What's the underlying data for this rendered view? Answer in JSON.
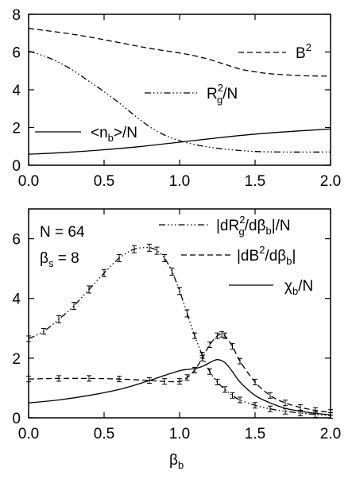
{
  "chart_data": [
    {
      "type": "line",
      "panel": "top",
      "xlim": [
        0.0,
        2.0
      ],
      "ylim": [
        0,
        8
      ],
      "xticks": [
        "0.0",
        "0.5",
        "1.0",
        "1.5",
        "2.0"
      ],
      "yticks": [
        "0",
        "2",
        "4",
        "6",
        "8"
      ],
      "grid": false,
      "series": [
        {
          "name": "B2",
          "legend_main": "B",
          "legend_sup": "2",
          "dash": "dashed",
          "x": [
            0.0,
            0.2,
            0.4,
            0.6,
            0.8,
            1.0,
            1.1,
            1.2,
            1.3,
            1.4,
            1.5,
            1.6,
            1.8,
            2.0
          ],
          "y": [
            7.25,
            7.05,
            6.8,
            6.5,
            6.2,
            5.95,
            5.8,
            5.6,
            5.35,
            5.1,
            4.95,
            4.85,
            4.75,
            4.72
          ]
        },
        {
          "name": "R2g/N",
          "legend_main": "R",
          "legend_sup": "2",
          "legend_sub": "g",
          "legend_tail": "/N",
          "dash": "dashdotdot",
          "x": [
            0.0,
            0.1,
            0.2,
            0.3,
            0.4,
            0.5,
            0.6,
            0.7,
            0.8,
            0.9,
            1.0,
            1.1,
            1.2,
            1.3,
            1.4,
            1.5,
            1.7,
            2.0
          ],
          "y": [
            6.05,
            5.8,
            5.45,
            5.0,
            4.45,
            3.9,
            3.3,
            2.65,
            2.05,
            1.6,
            1.3,
            1.1,
            0.95,
            0.85,
            0.78,
            0.73,
            0.7,
            0.7
          ]
        },
        {
          "name": "<nb>/N",
          "legend_main": "<n",
          "legend_sub": "b",
          "legend_tail": ">/N",
          "dash": "solid",
          "x": [
            0.0,
            0.25,
            0.5,
            0.75,
            1.0,
            1.25,
            1.5,
            1.75,
            2.0
          ],
          "y": [
            0.58,
            0.68,
            0.82,
            1.0,
            1.22,
            1.45,
            1.65,
            1.8,
            1.92
          ]
        }
      ]
    },
    {
      "type": "line",
      "panel": "bottom",
      "xlim": [
        0.0,
        2.0
      ],
      "ylim": [
        0,
        7
      ],
      "xticks": [
        "0.0",
        "0.5",
        "1.0",
        "1.5",
        "2.0"
      ],
      "yticks": [
        "0",
        "2",
        "4",
        "6"
      ],
      "xlabel_main": "β",
      "xlabel_sub": "b",
      "grid": false,
      "annotation": {
        "line1": "N = 64",
        "line2_main": "β",
        "line2_sub": "s",
        "line2_tail": " = 8"
      },
      "series": [
        {
          "name": "|dR2g/dβb|/N",
          "legend_pre": "|dR",
          "legend_sup": "2",
          "legend_sub": "g",
          "legend_mid": "/dβ",
          "legend_sub2": "b",
          "legend_tail": "|/N",
          "dash": "dashdotdot",
          "error_bars": true,
          "x": [
            0.0,
            0.1,
            0.2,
            0.3,
            0.4,
            0.5,
            0.6,
            0.7,
            0.8,
            0.85,
            0.9,
            0.95,
            1.0,
            1.05,
            1.1,
            1.15,
            1.2,
            1.25,
            1.3,
            1.35,
            1.4,
            1.5,
            1.6,
            1.7,
            1.8,
            1.9,
            2.0
          ],
          "y": [
            2.65,
            2.9,
            3.3,
            3.75,
            4.3,
            4.85,
            5.35,
            5.65,
            5.7,
            5.6,
            5.35,
            4.9,
            4.25,
            3.5,
            2.75,
            2.1,
            1.55,
            1.2,
            0.95,
            0.75,
            0.6,
            0.42,
            0.3,
            0.22,
            0.16,
            0.11,
            0.08
          ]
        },
        {
          "name": "|dB2/dβb|",
          "legend_pre": "|dB",
          "legend_sup": "2",
          "legend_mid": "/dβ",
          "legend_sub2": "b",
          "legend_tail": "|",
          "dash": "dashed",
          "error_bars": true,
          "x": [
            0.0,
            0.2,
            0.4,
            0.6,
            0.8,
            0.9,
            1.0,
            1.05,
            1.1,
            1.15,
            1.2,
            1.25,
            1.28,
            1.3,
            1.35,
            1.4,
            1.5,
            1.6,
            1.7,
            1.8,
            1.9,
            2.0
          ],
          "y": [
            1.3,
            1.32,
            1.32,
            1.3,
            1.25,
            1.22,
            1.22,
            1.35,
            1.6,
            2.0,
            2.45,
            2.75,
            2.8,
            2.75,
            2.4,
            1.9,
            1.2,
            0.75,
            0.5,
            0.35,
            0.25,
            0.18
          ]
        },
        {
          "name": "χb/N",
          "legend_pre": "χ",
          "legend_sub": "b",
          "legend_tail": "/N",
          "dash": "solid",
          "error_bars": false,
          "x": [
            0.0,
            0.2,
            0.4,
            0.6,
            0.8,
            0.9,
            1.0,
            1.05,
            1.1,
            1.15,
            1.2,
            1.25,
            1.3,
            1.35,
            1.4,
            1.5,
            1.6,
            1.7,
            1.8,
            1.9,
            2.0
          ],
          "y": [
            0.5,
            0.6,
            0.75,
            0.95,
            1.25,
            1.42,
            1.58,
            1.62,
            1.65,
            1.72,
            1.85,
            1.95,
            1.85,
            1.55,
            1.2,
            0.75,
            0.5,
            0.32,
            0.22,
            0.15,
            0.1
          ]
        }
      ]
    }
  ]
}
